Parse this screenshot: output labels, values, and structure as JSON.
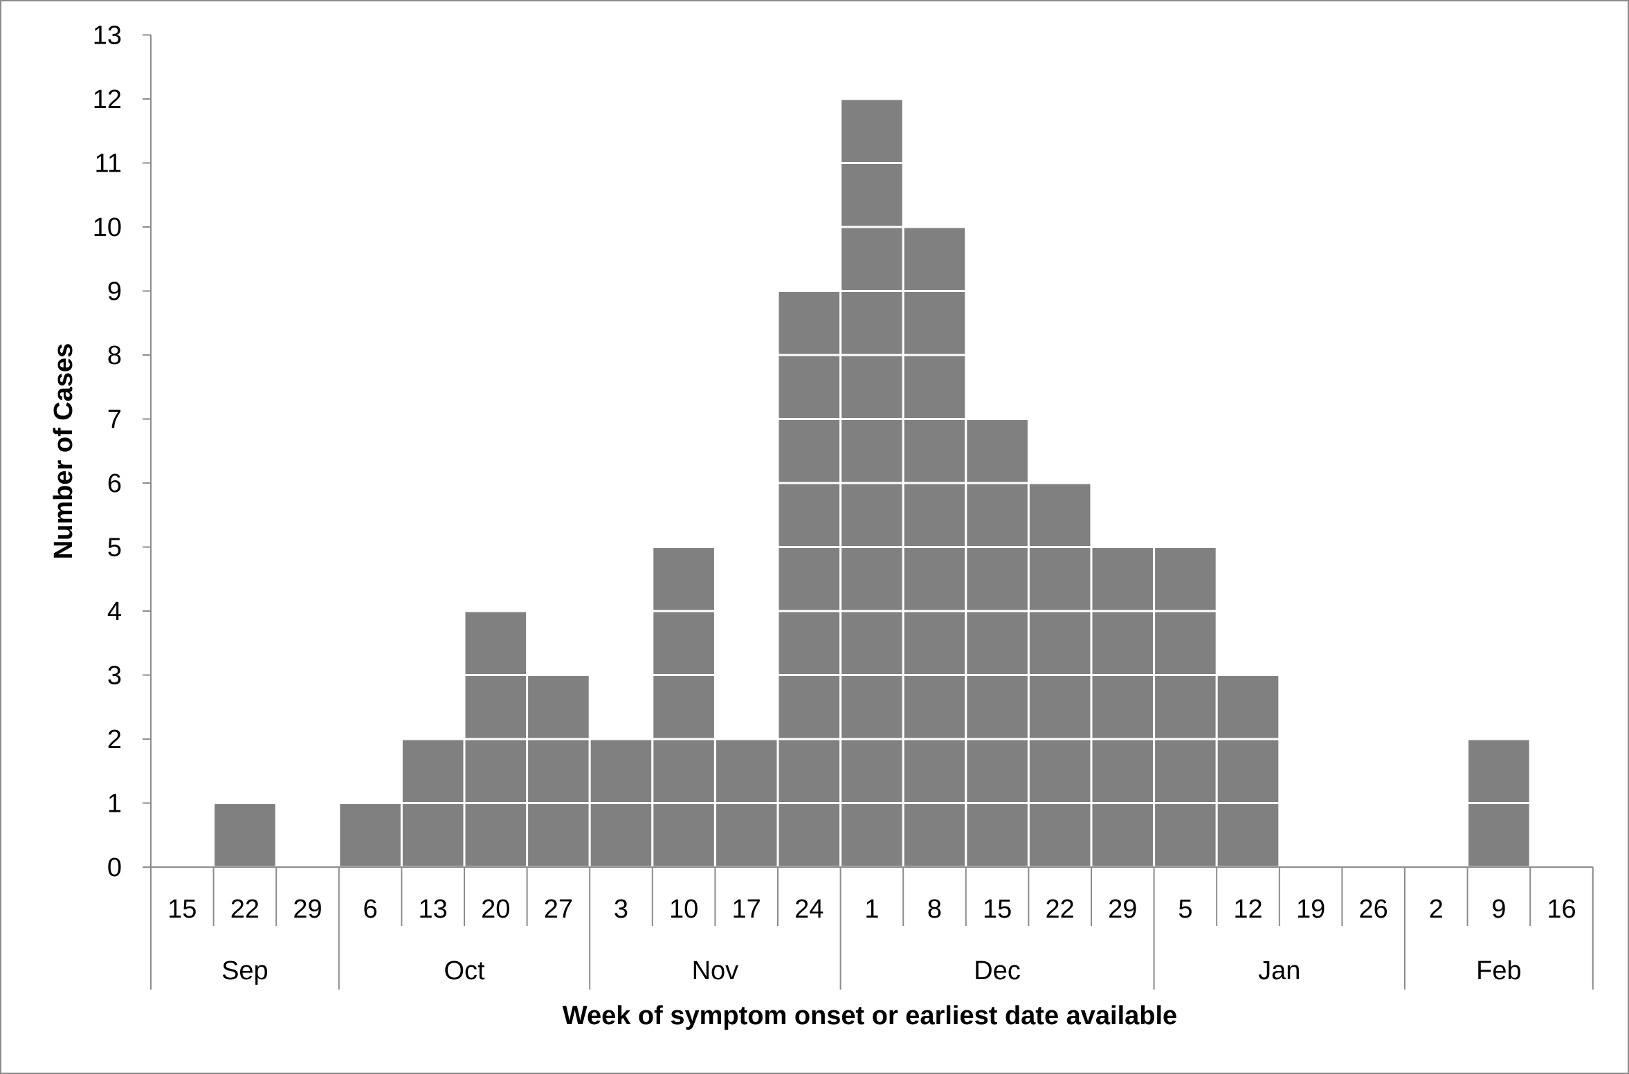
{
  "chart_data": {
    "type": "bar",
    "style": "stacked-unit-squares",
    "xlabel": "Week of symptom onset or earliest date available",
    "ylabel": "Number of Cases",
    "ylim": [
      0,
      13
    ],
    "yticks": [
      0,
      1,
      2,
      3,
      4,
      5,
      6,
      7,
      8,
      9,
      10,
      11,
      12,
      13
    ],
    "grid": false,
    "legend": "none",
    "categories": [
      "15",
      "22",
      "29",
      "6",
      "13",
      "20",
      "27",
      "3",
      "10",
      "17",
      "24",
      "1",
      "8",
      "15",
      "22",
      "29",
      "5",
      "12",
      "19",
      "26",
      "2",
      "9",
      "16"
    ],
    "values": [
      0,
      1,
      0,
      1,
      2,
      4,
      3,
      2,
      5,
      2,
      9,
      12,
      10,
      7,
      6,
      5,
      5,
      3,
      0,
      0,
      0,
      2,
      0
    ],
    "months": [
      {
        "label": "Sep",
        "start": 0,
        "end": 3
      },
      {
        "label": "Oct",
        "start": 3,
        "end": 7
      },
      {
        "label": "Nov",
        "start": 7,
        "end": 11
      },
      {
        "label": "Dec",
        "start": 11,
        "end": 16
      },
      {
        "label": "Jan",
        "start": 16,
        "end": 20
      },
      {
        "label": "Feb",
        "start": 20,
        "end": 23
      }
    ],
    "colors": {
      "bar": "#808080",
      "cell_border": "#ffffff",
      "axis": "#8c8c8c",
      "frame": "#8c8c8c"
    }
  }
}
